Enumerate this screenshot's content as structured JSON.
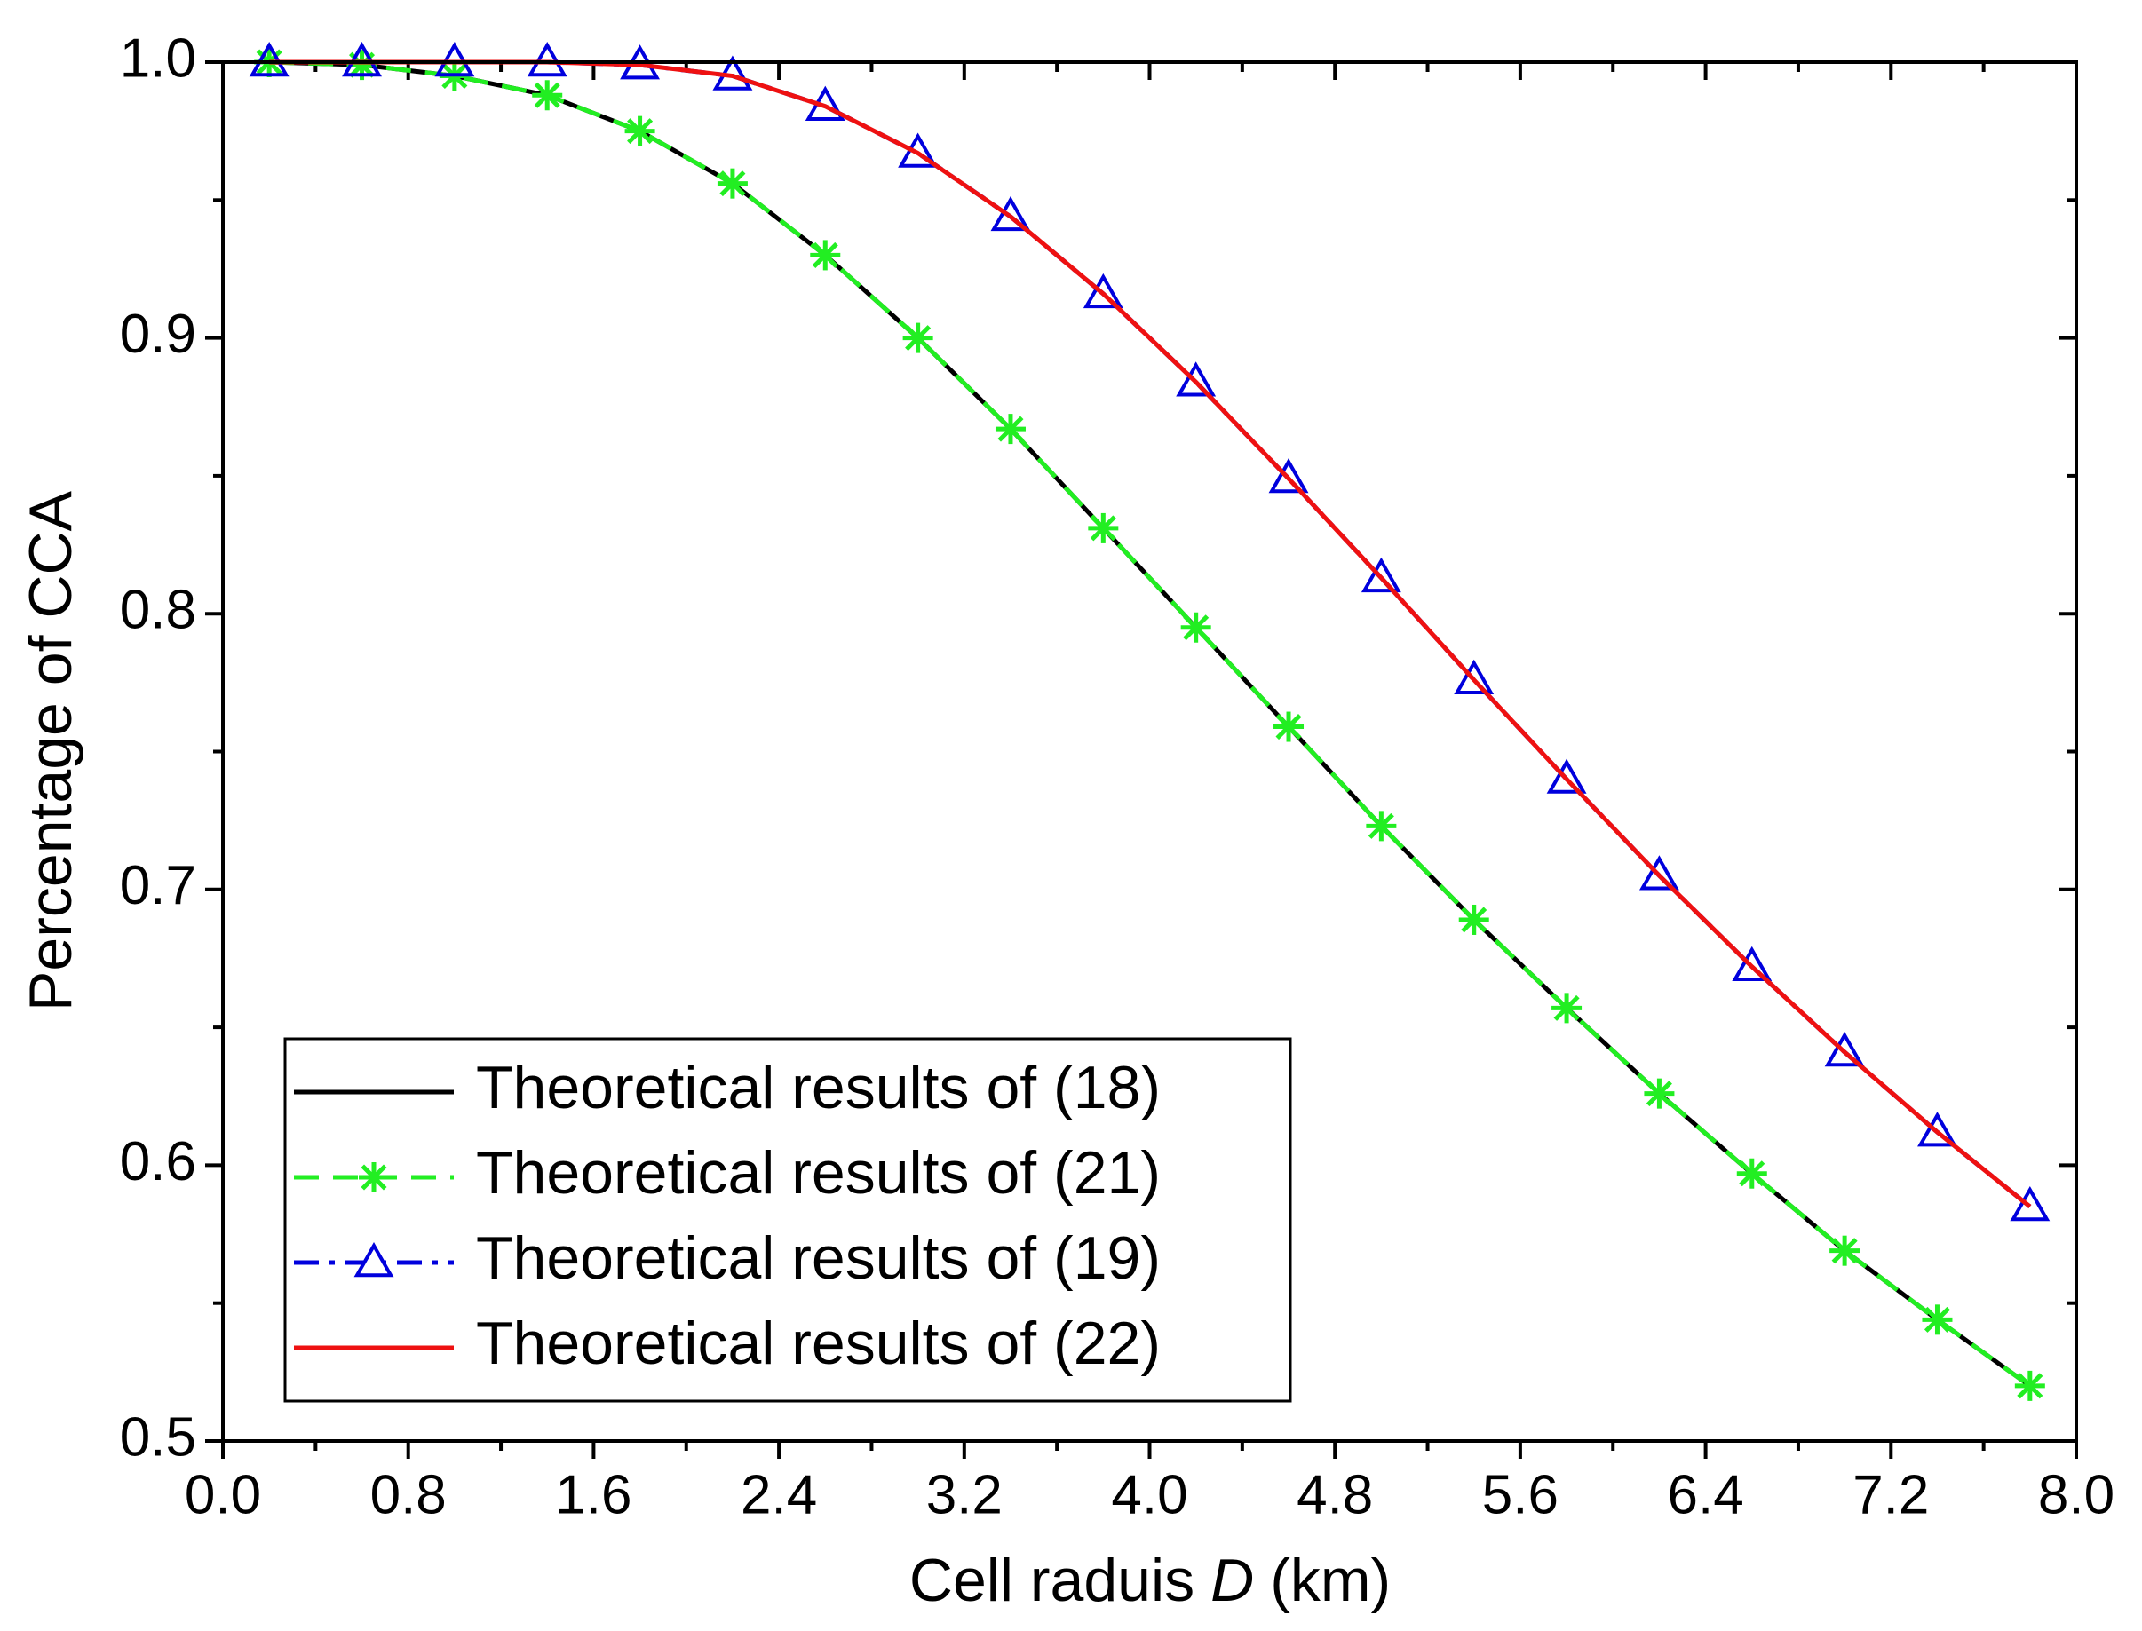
{
  "chart_data": {
    "type": "line",
    "x_label": {
      "text": "Cell raduis",
      "variable": "D",
      "unit": "(km)"
    },
    "y_label": "Percentage of CCA",
    "x": [
      0.2,
      0.6,
      1.0,
      1.4,
      1.8,
      2.2,
      2.6,
      3.0,
      3.4,
      3.8,
      4.2,
      4.6,
      5.0,
      5.4,
      5.8,
      6.2,
      6.6,
      7.0,
      7.4,
      7.8
    ],
    "series": [
      {
        "name": "Theoretical results of (18)",
        "color": "#000000",
        "dash": "solid",
        "marker": "none",
        "values": [
          1.0,
          0.999,
          0.995,
          0.988,
          0.975,
          0.956,
          0.93,
          0.9,
          0.867,
          0.831,
          0.795,
          0.759,
          0.723,
          0.689,
          0.657,
          0.626,
          0.597,
          0.569,
          0.544,
          0.52
        ]
      },
      {
        "name": "Theoretical results of (21)",
        "color": "#22ee22",
        "dash": "dash",
        "marker": "star",
        "values": [
          1.0,
          0.999,
          0.995,
          0.988,
          0.975,
          0.956,
          0.93,
          0.9,
          0.867,
          0.831,
          0.795,
          0.759,
          0.723,
          0.689,
          0.657,
          0.626,
          0.597,
          0.569,
          0.544,
          0.52
        ]
      },
      {
        "name": "Theoretical results of (19)",
        "color": "#0000dd",
        "dash": "dashdot",
        "marker": "triangle",
        "values": [
          1.0,
          1.0,
          1.0,
          1.0,
          0.999,
          0.995,
          0.984,
          0.967,
          0.944,
          0.916,
          0.884,
          0.849,
          0.813,
          0.776,
          0.74,
          0.705,
          0.672,
          0.641,
          0.612,
          0.585
        ]
      },
      {
        "name": "Theoretical results of (22)",
        "color": "#ee1111",
        "dash": "solid",
        "marker": "none",
        "values": [
          1.0,
          1.0,
          1.0,
          1.0,
          0.999,
          0.995,
          0.984,
          0.967,
          0.944,
          0.916,
          0.884,
          0.849,
          0.813,
          0.776,
          0.74,
          0.705,
          0.672,
          0.641,
          0.612,
          0.585
        ]
      }
    ],
    "xlim": [
      0,
      8
    ],
    "ylim": [
      0.5,
      1.0
    ],
    "xticks": [
      {
        "value": 0,
        "label": "0.0"
      },
      0.8,
      1.6,
      2.4,
      3.2,
      {
        "value": 4,
        "label": "4.0"
      },
      4.8,
      5.6,
      6.4,
      7.2,
      {
        "value": 8,
        "label": "8.0"
      }
    ],
    "yticks": [
      0.5,
      0.6,
      0.7,
      0.8,
      0.9,
      {
        "value": 1,
        "label": "1.0"
      }
    ],
    "legend": "lower left",
    "grid": false
  }
}
